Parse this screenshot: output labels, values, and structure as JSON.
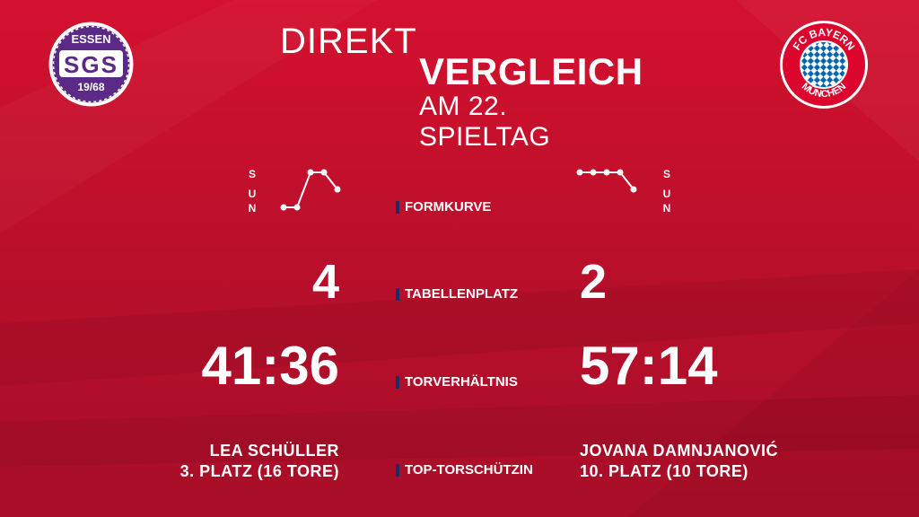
{
  "title": {
    "line1": "DIREKT",
    "line2": "VERGLEICH",
    "line3": "AM 22. SPIELTAG"
  },
  "home": {
    "logo": {
      "top": "ESSEN",
      "middle": "SGS",
      "bottom": "19/68",
      "color": "#5b2a86"
    },
    "form_legend": [
      "S",
      "U",
      "N"
    ],
    "form_curve": [
      "N",
      "N",
      "S",
      "S",
      "U"
    ],
    "table_position": "4",
    "goal_ratio": "41:36",
    "top_scorer_name": "LEA SCHÜLLER",
    "top_scorer_detail": "3. PLATZ (16 TORE)"
  },
  "away": {
    "logo": {
      "text_top": "FC BAYERN",
      "text_bottom": "MÜNCHEN",
      "color": "#dc052d",
      "diamond_color": "#0066b2"
    },
    "form_legend": [
      "S",
      "U",
      "N"
    ],
    "form_curve": [
      "S",
      "S",
      "S",
      "S",
      "U"
    ],
    "table_position": "2",
    "goal_ratio": "57:14",
    "top_scorer_name": "JOVANA DAMNJANOVIĆ",
    "top_scorer_detail": "10. PLATZ (10 TORE)"
  },
  "labels": {
    "form": "FORMKURVE",
    "table": "TABELLENPLATZ",
    "goals": "TORVERHÄLTNIS",
    "scorer": "TOP-TORSCHÜTZIN"
  },
  "colors": {
    "background": "#c8102e",
    "accent_bar": "#1c2a6e"
  }
}
